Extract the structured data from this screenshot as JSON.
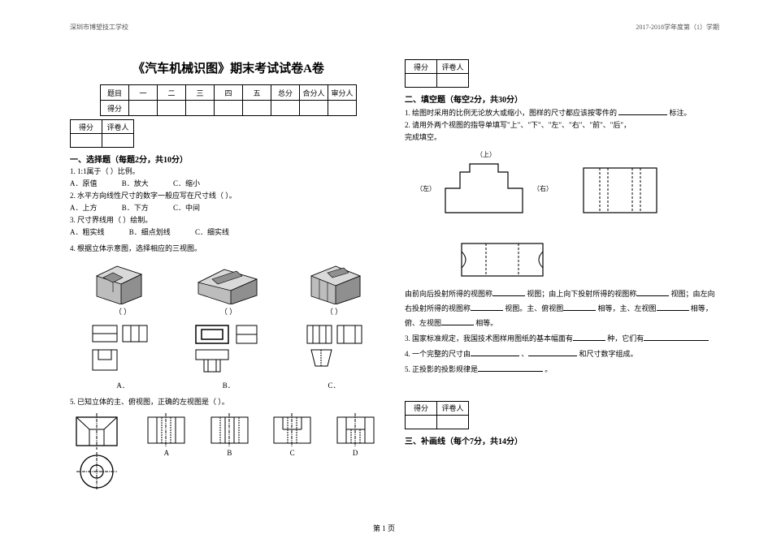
{
  "header": {
    "left": "深圳市博望技工学校",
    "right": "2017-2018学年度第（1）学期"
  },
  "footer": "第 1 页",
  "title": "《汽车机械识图》期末考试试卷A卷",
  "score_labels": {
    "score": "得分",
    "grader": "评卷人"
  },
  "header_table": [
    "题目",
    "一",
    "二",
    "三",
    "四",
    "五",
    "总分",
    "合分人",
    "审分人"
  ],
  "header_table_row2_first": "得分",
  "sec1": {
    "title": "一、选择题（每题2分，共10分）",
    "q1": "1.  1:1属于（     ）比例。",
    "q1_opts": {
      "a": "A．原值",
      "b": "B．放大",
      "c": "C．缩小"
    },
    "q2": "2.  水平方向线性尺寸的数字一般应写在尺寸线（     ）。",
    "q2_opts": {
      "a": "A．上方",
      "b": "B．下方",
      "c": "C．中间"
    },
    "q3": "3.  尺寸界线用（     ）绘制。",
    "q3_opts": {
      "a": "A．粗实线",
      "b": "B．细点划线",
      "c": "C．细实线"
    },
    "q4": "4.  根据立体示意图，选择相应的三视图。",
    "q4_caps": {
      "a": "A．",
      "b": "B．",
      "c": "C．",
      "paren": "（        ）"
    },
    "q5": "5.  已知立体的主、俯视图，正确的左视图是（        ）。",
    "q5_caps": {
      "a": "A",
      "b": "B",
      "c": "C",
      "d": "D"
    }
  },
  "sec2": {
    "title": "二、填空题（每空2分，共30分）",
    "q1a": "1.  绘图时采用的比例无论放大或缩小，图样的尺寸都应该按零件的",
    "q1b": "标注。",
    "q2a": "2.  请用外两个视图的指导单填写\"上\"、\"下\"、\"左\"、\"右\"、\"前\"、\"后\"，",
    "q2b": "完成填空。",
    "dir_labels": {
      "top": "（上）",
      "left": "（左）",
      "right": "（右）"
    },
    "p_a": "由前向后投射所得的视图称",
    "p_b": "视图；由上向下投射所得的视图称",
    "p_c": "视图；由左向",
    "p_d": "右投射所得的视图称",
    "p_e": "视图。主、俯视图",
    "p_f": "相等，主、左视图",
    "p_g": "相等，",
    "p_h": "俯、左视图",
    "p_i": "相等。",
    "q3a": "3. 国家标准规定，我国技术图样用图纸的基本幅面有",
    "q3b": "种，它们有",
    "q4a": "4. 一个完整的尺寸由",
    "q4b": "、",
    "q4c": "和尺寸数字组成。",
    "q5a": "5.  正投影的投影规律是",
    "q5b": "。"
  },
  "sec3": {
    "title": "三、补画线（每个7分，共14分）"
  },
  "colors": {
    "iso_fill": "#bdbdbd",
    "iso_dark": "#8f8f8f",
    "iso_light": "#d9d9d9",
    "line": "#000000"
  }
}
